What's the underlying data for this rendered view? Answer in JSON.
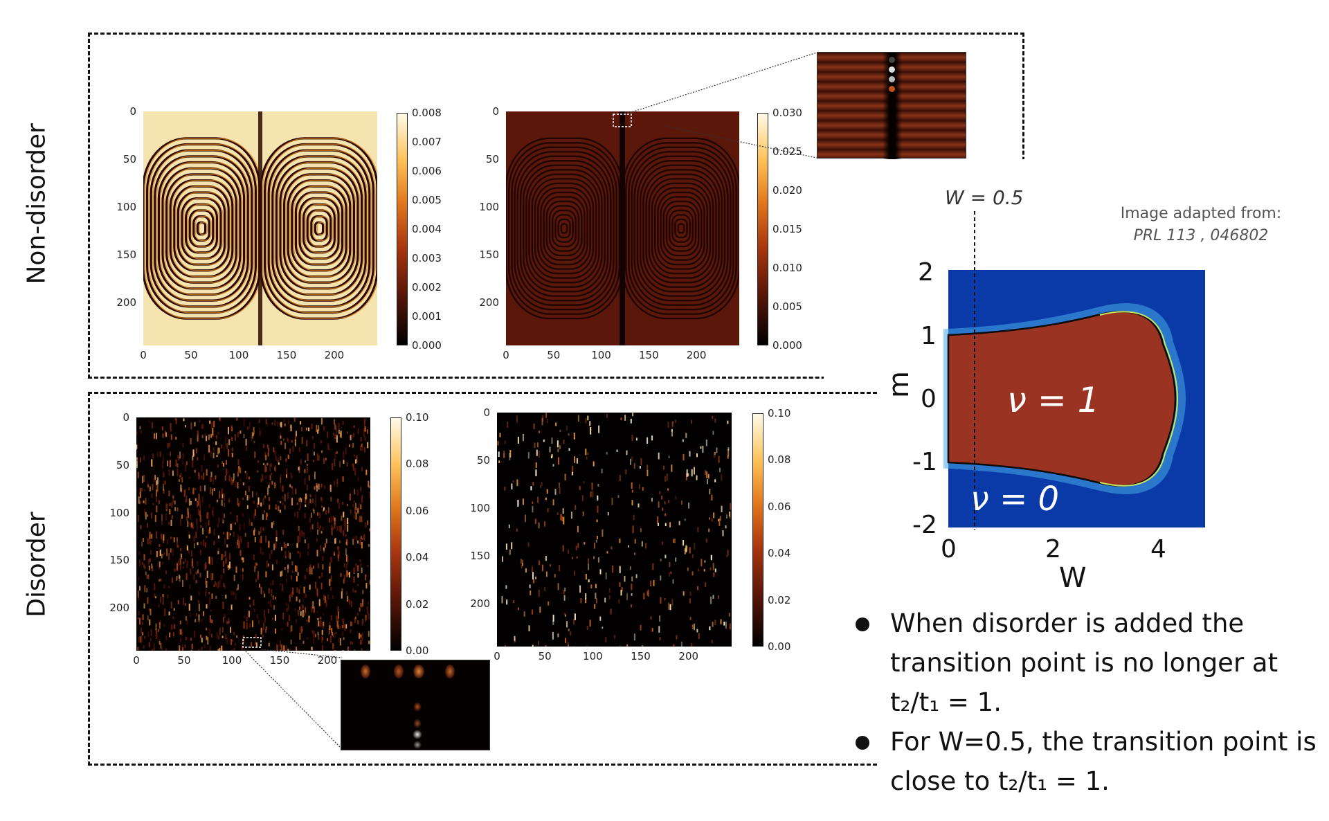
{
  "rows": {
    "top_label": "Non-disorder",
    "bottom_label": "Disorder"
  },
  "chart_data": [
    {
      "type": "heatmap",
      "panel": "non-disorder-left",
      "x_ticks": [
        "0",
        "50",
        "100",
        "150",
        "200"
      ],
      "y_ticks": [
        "0",
        "50",
        "100",
        "150",
        "200"
      ],
      "xlim": [
        0,
        245
      ],
      "ylim": [
        245,
        0
      ],
      "colorbar_ticks": [
        "0.008",
        "0.007",
        "0.006",
        "0.005",
        "0.004",
        "0.003",
        "0.002",
        "0.001",
        "0.000"
      ],
      "colorbar_range": [
        0,
        0.008
      ],
      "colormap": "afmhot"
    },
    {
      "type": "heatmap",
      "panel": "non-disorder-right",
      "x_ticks": [
        "0",
        "50",
        "100",
        "150",
        "200"
      ],
      "y_ticks": [
        "0",
        "50",
        "100",
        "150",
        "200"
      ],
      "xlim": [
        0,
        245
      ],
      "ylim": [
        245,
        0
      ],
      "colorbar_ticks": [
        "0.030",
        "0.025",
        "0.020",
        "0.015",
        "0.010",
        "0.005",
        "0.000"
      ],
      "colorbar_range": [
        0,
        0.03
      ],
      "colormap": "afmhot"
    },
    {
      "type": "heatmap",
      "panel": "disorder-left",
      "x_ticks": [
        "0",
        "50",
        "100",
        "150",
        "200"
      ],
      "y_ticks": [
        "0",
        "50",
        "100",
        "150",
        "200"
      ],
      "xlim": [
        0,
        245
      ],
      "ylim": [
        245,
        0
      ],
      "colorbar_ticks": [
        "0.10",
        "0.08",
        "0.06",
        "0.04",
        "0.02",
        "0.00"
      ],
      "colorbar_range": [
        0,
        0.1
      ],
      "colormap": "afmhot"
    },
    {
      "type": "heatmap",
      "panel": "disorder-right",
      "x_ticks": [
        "0",
        "50",
        "100",
        "150",
        "200"
      ],
      "y_ticks": [
        "0",
        "50",
        "100",
        "150",
        "200"
      ],
      "xlim": [
        0,
        245
      ],
      "ylim": [
        245,
        0
      ],
      "colorbar_ticks": [
        "0.10",
        "0.08",
        "0.06",
        "0.04",
        "0.02",
        "0.00"
      ],
      "colorbar_range": [
        0,
        0.1
      ],
      "colormap": "afmhot"
    },
    {
      "type": "area",
      "panel": "phase-diagram",
      "xlabel": "W",
      "ylabel": "m",
      "xlim": [
        0,
        5
      ],
      "ylim": [
        -2,
        2
      ],
      "x_ticks": [
        "0",
        "2",
        "4"
      ],
      "y_ticks": [
        "2",
        "1",
        "0",
        "-1",
        "-2"
      ],
      "regions": [
        {
          "label": "ν = 1",
          "color": "#9a3322"
        },
        {
          "label": "ν = 0",
          "color": "#0a3aa8"
        }
      ],
      "boundary_upper": [
        [
          0,
          1.0
        ],
        [
          0.5,
          1.0
        ],
        [
          1.0,
          1.02
        ],
        [
          1.5,
          1.06
        ],
        [
          2.0,
          1.13
        ],
        [
          2.5,
          1.28
        ],
        [
          3.0,
          1.42
        ],
        [
          3.5,
          1.2
        ],
        [
          3.8,
          0.75
        ],
        [
          4.0,
          0.0
        ]
      ],
      "boundary_lower": [
        [
          0,
          -1.0
        ],
        [
          0.5,
          -1.0
        ],
        [
          1.0,
          -1.02
        ],
        [
          1.5,
          -1.06
        ],
        [
          2.0,
          -1.13
        ],
        [
          2.5,
          -1.28
        ],
        [
          3.0,
          -1.42
        ],
        [
          3.5,
          -1.2
        ],
        [
          3.8,
          -0.75
        ],
        [
          4.0,
          0.0
        ]
      ],
      "marker_line": {
        "x": 0.5,
        "label": "W = 0.5"
      }
    }
  ],
  "phase": {
    "marker_label": "W = 0.5",
    "nu1_label": "ν = 1",
    "nu0_label": "ν = 0",
    "xlabel": "W",
    "ylabel": "m",
    "attribution_line1": "Image adapted from:",
    "attribution_line2": "PRL 113 , 046802"
  },
  "bullets": {
    "b1_l1": "When disorder is added the",
    "b1_l2": "transition point is no longer at",
    "b1_l3": "t₂/t₁ = 1.",
    "b2_l1": "For W=0.5, the transition point is",
    "b2_l2": "close to t₂/t₁ = 1."
  },
  "colors": {
    "dark": "#000000",
    "brown": "#7a2412",
    "orange": "#e0781e",
    "cream": "#ffefc0",
    "blue": "#0a3aa8",
    "red": "#9a3322"
  }
}
